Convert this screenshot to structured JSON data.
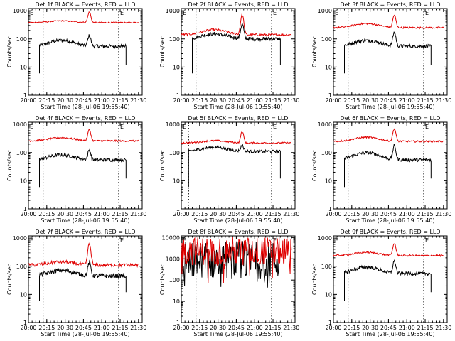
{
  "figure": {
    "y_ticks": [
      "1",
      "10",
      "100",
      "1000"
    ],
    "y_ticks_wide": [
      "1",
      "10",
      "100",
      "1000",
      "10000"
    ],
    "x_ticks": [
      "20:00",
      "20:15",
      "20:30",
      "20:45",
      "21:00",
      "21:15",
      "21:30"
    ],
    "ylabel": "Counts/sec",
    "xlabel": "Start Time (28-Jul-06 19:55:40)",
    "marker_label": "E",
    "colors": {
      "events": "#000000",
      "lld": "#e00000"
    }
  },
  "chart_data": [
    {
      "type": "line",
      "title": "Det 1f BLACK = Events, RED = LLD",
      "ylim": [
        1,
        1200
      ],
      "x_range": [
        20.0,
        21.55
      ],
      "vlines": [
        20.2,
        21.23
      ],
      "series": [
        {
          "name": "Events",
          "color": "#000000",
          "start": 20.15,
          "end": 21.33,
          "base": 55,
          "hump": 1.6,
          "flare": 130,
          "noise": 0.06,
          "kind": "smooth"
        },
        {
          "name": "LLD",
          "color": "#e00000",
          "start": 20.0,
          "end": 21.5,
          "base": 380,
          "hump": 1.15,
          "flare": 900,
          "noise": 0.02,
          "kind": "smooth"
        }
      ]
    },
    {
      "type": "line",
      "title": "Det 2f BLACK = Events, RED = LLD",
      "ylim": [
        1,
        1200
      ],
      "x_range": [
        20.0,
        21.55
      ],
      "vlines": [
        20.2,
        21.23
      ],
      "series": [
        {
          "name": "Events",
          "color": "#000000",
          "start": 20.15,
          "end": 21.35,
          "base": 100,
          "hump": 1.5,
          "flare": 330,
          "noise": 0.07,
          "kind": "smooth"
        },
        {
          "name": "LLD",
          "color": "#e00000",
          "start": 20.0,
          "end": 21.5,
          "base": 140,
          "hump": 1.5,
          "flare": 700,
          "noise": 0.04,
          "kind": "smooth"
        }
      ]
    },
    {
      "type": "line",
      "title": "Det 3f BLACK = Events, RED = LLD",
      "ylim": [
        1,
        1200
      ],
      "x_range": [
        20.0,
        21.55
      ],
      "vlines": [
        20.2,
        21.23
      ],
      "series": [
        {
          "name": "Events",
          "color": "#000000",
          "start": 20.15,
          "end": 21.33,
          "base": 55,
          "hump": 1.6,
          "flare": 170,
          "noise": 0.06,
          "kind": "smooth"
        },
        {
          "name": "LLD",
          "color": "#e00000",
          "start": 20.0,
          "end": 21.5,
          "base": 250,
          "hump": 1.4,
          "flare": 700,
          "noise": 0.03,
          "kind": "smooth"
        }
      ]
    },
    {
      "type": "line",
      "title": "Det 4f BLACK = Events, RED = LLD",
      "ylim": [
        1,
        1200
      ],
      "x_range": [
        20.0,
        21.55
      ],
      "vlines": [
        20.2,
        21.23
      ],
      "series": [
        {
          "name": "Events",
          "color": "#000000",
          "start": 20.15,
          "end": 21.33,
          "base": 55,
          "hump": 1.5,
          "flare": 120,
          "noise": 0.06,
          "kind": "smooth"
        },
        {
          "name": "LLD",
          "color": "#e00000",
          "start": 20.0,
          "end": 21.5,
          "base": 260,
          "hump": 1.3,
          "flare": 650,
          "noise": 0.03,
          "kind": "smooth"
        }
      ]
    },
    {
      "type": "line",
      "title": "Det 5f BLACK = Events, RED = LLD",
      "ylim": [
        1,
        1200
      ],
      "x_range": [
        20.0,
        21.55
      ],
      "vlines": [
        20.1,
        21.23
      ],
      "series": [
        {
          "name": "Events",
          "color": "#000000",
          "start": 20.1,
          "end": 21.35,
          "base": 110,
          "hump": 1.4,
          "flare": 180,
          "noise": 0.05,
          "kind": "smooth"
        },
        {
          "name": "LLD",
          "color": "#e00000",
          "start": 20.0,
          "end": 21.5,
          "base": 220,
          "hump": 1.2,
          "flare": 550,
          "noise": 0.03,
          "kind": "smooth"
        }
      ]
    },
    {
      "type": "line",
      "title": "Det 6f BLACK = Events, RED = LLD",
      "ylim": [
        1,
        1200
      ],
      "x_range": [
        20.0,
        21.55
      ],
      "vlines": [
        20.2,
        21.23
      ],
      "series": [
        {
          "name": "Events",
          "color": "#000000",
          "start": 20.15,
          "end": 21.33,
          "base": 55,
          "hump": 1.8,
          "flare": 170,
          "noise": 0.06,
          "kind": "smooth"
        },
        {
          "name": "LLD",
          "color": "#e00000",
          "start": 20.0,
          "end": 21.5,
          "base": 250,
          "hump": 1.4,
          "flare": 700,
          "noise": 0.03,
          "kind": "smooth"
        }
      ]
    },
    {
      "type": "line",
      "title": "Det 7f BLACK = Events, RED = LLD",
      "ylim": [
        1,
        1200
      ],
      "x_range": [
        20.0,
        21.55
      ],
      "vlines": [
        20.2,
        21.23
      ],
      "series": [
        {
          "name": "Events",
          "color": "#000000",
          "start": 20.15,
          "end": 21.33,
          "base": 45,
          "hump": 1.6,
          "flare": 130,
          "noise": 0.08,
          "kind": "smooth"
        },
        {
          "name": "LLD",
          "color": "#e00000",
          "start": 20.0,
          "end": 21.5,
          "base": 110,
          "hump": 1.3,
          "flare": 600,
          "noise": 0.06,
          "kind": "smooth"
        }
      ]
    },
    {
      "type": "line",
      "title": "Det 8f BLACK = Events, RED = LLD",
      "ylim": [
        1,
        12000
      ],
      "x_range": [
        20.0,
        21.55
      ],
      "vlines": [
        20.2,
        21.23
      ],
      "series": [
        {
          "name": "Events",
          "color": "#000000",
          "start": 20.0,
          "end": 21.33,
          "base": 700,
          "hump": 1.0,
          "flare": 0,
          "noise": 0.6,
          "kind": "noisy"
        },
        {
          "name": "LLD",
          "color": "#e00000",
          "start": 20.0,
          "end": 21.5,
          "base": 2000,
          "hump": 1.0,
          "flare": 0,
          "noise": 0.45,
          "kind": "noisy"
        }
      ]
    },
    {
      "type": "line",
      "title": "Det 9f BLACK = Events, RED = LLD",
      "ylim": [
        1,
        1200
      ],
      "x_range": [
        20.0,
        21.55
      ],
      "vlines": [
        20.2,
        21.23
      ],
      "series": [
        {
          "name": "Events",
          "color": "#000000",
          "start": 20.15,
          "end": 21.33,
          "base": 55,
          "hump": 1.7,
          "flare": 150,
          "noise": 0.06,
          "kind": "smooth"
        },
        {
          "name": "LLD",
          "color": "#e00000",
          "start": 20.0,
          "end": 21.5,
          "base": 240,
          "hump": 1.3,
          "flare": 650,
          "noise": 0.03,
          "kind": "smooth"
        }
      ]
    }
  ]
}
